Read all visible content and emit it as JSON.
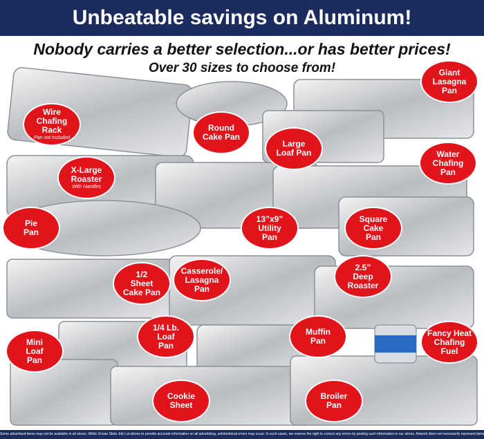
{
  "header": {
    "title": "Unbeatable savings on Aluminum!",
    "tagline": "Nobody carries a better selection...or has better prices!",
    "subline": "Over 30 sizes to choose from!"
  },
  "labels": [
    {
      "lines": [
        "Wire",
        "Chafing",
        "Rack"
      ],
      "note": "Pan not included"
    },
    {
      "lines": [
        "Round",
        "Cake Pan"
      ]
    },
    {
      "lines": [
        "Large",
        "Loaf Pan"
      ]
    },
    {
      "lines": [
        "Giant",
        "Lasagna",
        "Pan"
      ]
    },
    {
      "lines": [
        "Water",
        "Chafing",
        "Pan"
      ]
    },
    {
      "lines": [
        "X-Large",
        "Roaster"
      ],
      "note": "With Handles"
    },
    {
      "lines": [
        "Pie",
        "Pan"
      ]
    },
    {
      "lines": [
        "13”x9”",
        "Utility",
        "Pan"
      ]
    },
    {
      "lines": [
        "Square",
        "Cake",
        "Pan"
      ]
    },
    {
      "lines": [
        "1/2",
        "Sheet",
        "Cake Pan"
      ]
    },
    {
      "lines": [
        "Casserole/",
        "Lasagna",
        "Pan"
      ]
    },
    {
      "lines": [
        "2.5”",
        "Deep",
        "Roaster"
      ]
    },
    {
      "lines": [
        "1/4 Lb.",
        "Loaf",
        "Pan"
      ]
    },
    {
      "lines": [
        "Muffin",
        "Pan"
      ]
    },
    {
      "lines": [
        "Fancy Heat",
        "Chafing",
        "Fuel"
      ]
    },
    {
      "lines": [
        "Mini",
        "Loaf",
        "Pan"
      ]
    },
    {
      "lines": [
        "Cookie",
        "Sheet"
      ]
    },
    {
      "lines": [
        "Broiler",
        "Pan"
      ]
    }
  ],
  "footer": "Some advertised items may not be available in all stores. While Ocean State Job Lot strives to provide accurate information on all advertising, unintentional errors may occur. In such cases, we reserve the right to correct any errors by posting such information in our stores. Artwork does not necessarily represent items on sale, it is for display purposes only."
}
